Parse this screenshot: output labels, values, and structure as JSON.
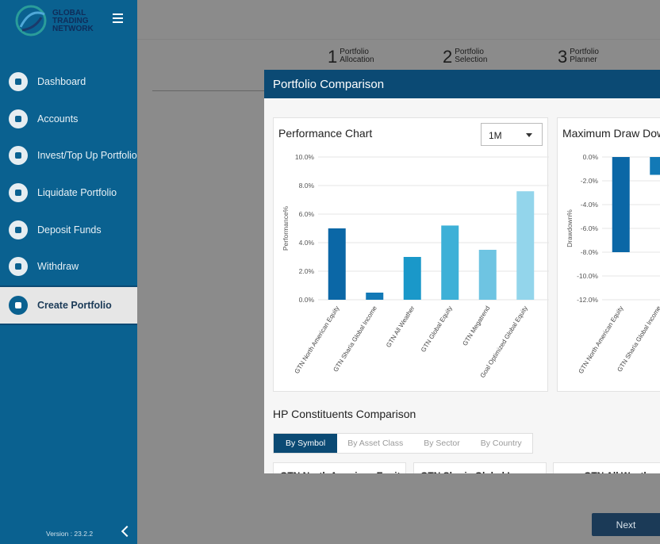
{
  "sidebar": {
    "logo": [
      "GLOBAL",
      "TRADING",
      "NETWORK"
    ],
    "menu": [
      "Dashboard",
      "Accounts",
      "Invest/Top Up Portfolio",
      "Liquidate Portfolio",
      "Deposit Funds",
      "Withdraw",
      "Create Portfolio"
    ],
    "version": "Version : 23.2.2"
  },
  "stepper": [
    {
      "number": 1,
      "label": "Portfolio Allocation"
    },
    {
      "number": 2,
      "label": "Portfolio Selection"
    },
    {
      "number": 3,
      "label": "Portfolio Planner"
    }
  ],
  "modal": {
    "title": "Portfolio Comparison",
    "section_title": "HP Constituents Comparison",
    "tabs": [
      "By Symbol",
      "By Asset Class",
      "By Sector",
      "By Country"
    ],
    "constituents": [
      "GTN North American Equity",
      "GTN Sharia Global Income",
      "GTN All Weather"
    ]
  },
  "chart_data": [
    {
      "type": "bar",
      "title": "Performance Chart",
      "period": "1M",
      "y_label": "Performance%",
      "categories": [
        "GTN North American Equity",
        "GTN Sharia Global Income",
        "GTN All Weather",
        "GTN Global Equity",
        "GTN Megatrend",
        "Goal Optimized Global Equity"
      ],
      "values": [
        5.0,
        0.5,
        3.0,
        5.2,
        3.5,
        7.6
      ],
      "colors": [
        "#0b67a6",
        "#1279b6",
        "#1a98c9",
        "#3db0d7",
        "#6ec4e2",
        "#93d5eb"
      ],
      "ylim": [
        0,
        10
      ],
      "yticks": [
        {
          "value": 0,
          "label": "0.0%"
        },
        {
          "value": 2,
          "label": "2.0%"
        },
        {
          "value": 4,
          "label": "4.0%"
        },
        {
          "value": 6,
          "label": "6.0%"
        },
        {
          "value": 8,
          "label": "8.0%"
        },
        {
          "value": 10,
          "label": "10.0%"
        }
      ],
      "grid": true
    },
    {
      "type": "bar",
      "title": "Maximum Draw Down",
      "y_label": "Drawdown%",
      "categories": [
        "GTN North American Equity",
        "GTN Sharia Global Income"
      ],
      "values": [
        -8.0,
        -1.5
      ],
      "colors": [
        "#0b67a6",
        "#1279b6"
      ],
      "ylim": [
        -12,
        0
      ],
      "yticks": [
        {
          "value": 0,
          "label": "0.0%"
        },
        {
          "value": -2,
          "label": "-2.0%"
        },
        {
          "value": -4,
          "label": "-4.0%"
        },
        {
          "value": -6,
          "label": "-6.0%"
        },
        {
          "value": -8,
          "label": "-8.0%"
        },
        {
          "value": -10,
          "label": "-10.0%"
        },
        {
          "value": -12,
          "label": "-12.0%"
        }
      ],
      "grid": true
    }
  ],
  "next": "Next"
}
